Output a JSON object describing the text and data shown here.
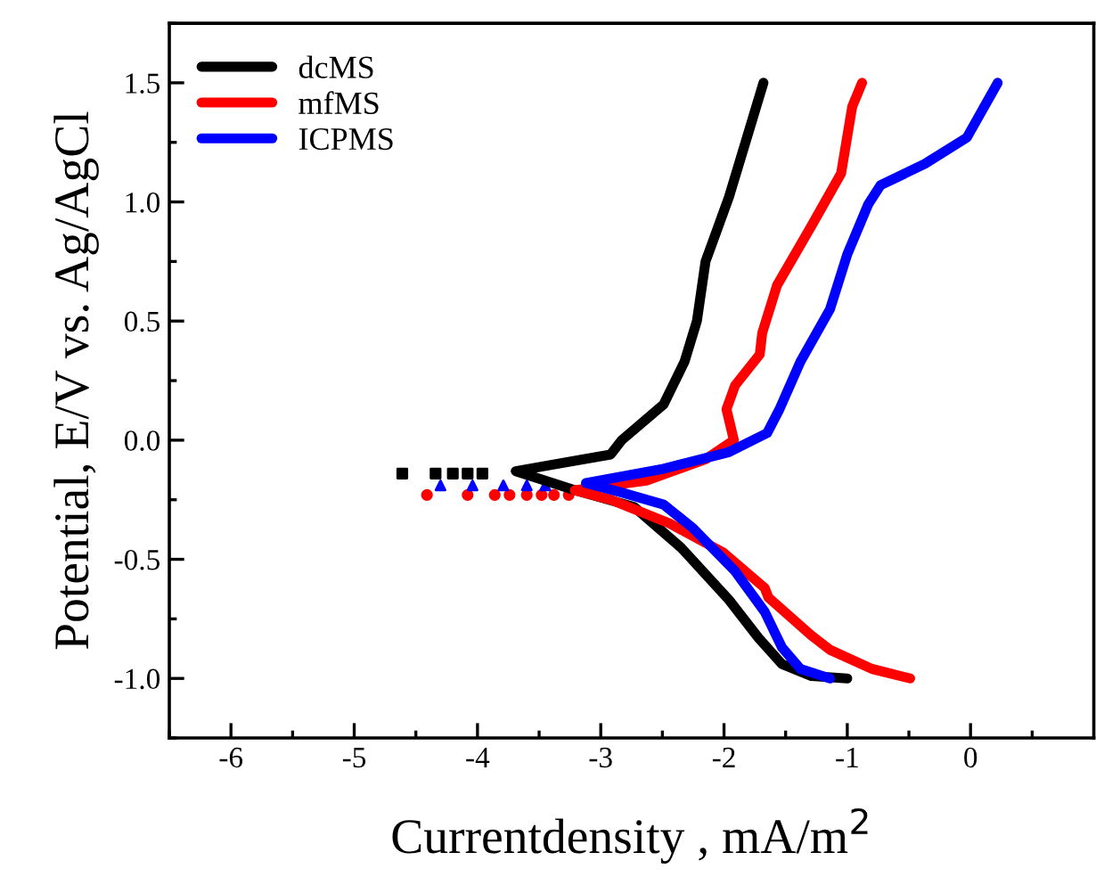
{
  "chart_data": {
    "type": "line",
    "xlabel": "Currentdensity , mA/m$^{2}$",
    "ylabel": "Potential, E/V vs. Ag/AgCl",
    "xlim": [
      -6.5,
      1.0
    ],
    "ylim": [
      -1.25,
      1.75
    ],
    "xticks": [
      -6,
      -5,
      -4,
      -3,
      -2,
      -1,
      0
    ],
    "yticks": [
      {
        "value": -1,
        "label": "-1.0"
      },
      {
        "value": -0.5,
        "label": "-0.5"
      },
      {
        "value": 0,
        "label": "0.0"
      },
      {
        "value": 0.5,
        "label": "0.5"
      },
      {
        "value": 1,
        "label": "1.0"
      },
      {
        "value": 1.5,
        "label": "1.5"
      }
    ],
    "legend": "top left",
    "grid": false,
    "series": [
      {
        "name": "dcMS",
        "color": "#000000",
        "x": [
          -1.68,
          -1.96,
          -2.15,
          -2.22,
          -2.32,
          -2.49,
          -2.83,
          -2.92,
          -3.69,
          -3.21,
          -2.73,
          -2.35,
          -1.96,
          -1.72,
          -1.53,
          -1.29,
          -1.0
        ],
        "values": [
          1.5,
          1.02,
          0.75,
          0.5,
          0.33,
          0.15,
          0.0,
          -0.06,
          -0.13,
          -0.21,
          -0.28,
          -0.45,
          -0.67,
          -0.83,
          -0.94,
          -0.99,
          -1.0
        ]
      },
      {
        "name": "mfMS",
        "color": "#ff0000",
        "x": [
          -0.88,
          -0.96,
          -1.05,
          -1.29,
          -1.57,
          -1.69,
          -1.71,
          -1.91,
          -1.98,
          -1.92,
          -2.15,
          -2.63,
          -3.21,
          -2.92,
          -2.44,
          -2.01,
          -1.67,
          -1.64,
          -1.29,
          -1.14,
          -0.8,
          -0.49
        ],
        "values": [
          1.5,
          1.4,
          1.12,
          0.9,
          0.65,
          0.45,
          0.36,
          0.23,
          0.13,
          0.0,
          -0.08,
          -0.17,
          -0.21,
          -0.25,
          -0.35,
          -0.47,
          -0.62,
          -0.66,
          -0.82,
          -0.88,
          -0.96,
          -1.0
        ]
      },
      {
        "name": "ICPMS",
        "color": "#0000ff",
        "x": [
          0.22,
          -0.03,
          -0.37,
          -0.73,
          -0.83,
          -1.0,
          -1.14,
          -1.38,
          -1.55,
          -1.65,
          -1.96,
          -2.49,
          -3.12,
          -2.83,
          -2.49,
          -2.25,
          -1.91,
          -1.67,
          -1.53,
          -1.38,
          -1.14
        ],
        "values": [
          1.5,
          1.27,
          1.16,
          1.07,
          0.99,
          0.78,
          0.55,
          0.33,
          0.13,
          0.03,
          -0.05,
          -0.12,
          -0.18,
          -0.22,
          -0.27,
          -0.37,
          -0.55,
          -0.72,
          -0.87,
          -0.96,
          -1.0
        ]
      },
      {
        "type": "scatter",
        "marker": "square",
        "color": "#000000",
        "x": [
          -3.96,
          -4.08,
          -4.2,
          -4.34,
          -4.61
        ],
        "values": [
          -0.14,
          -0.14,
          -0.14,
          -0.14,
          -0.14
        ]
      },
      {
        "type": "scatter",
        "marker": "circle",
        "color": "#ff0000",
        "x": [
          -3.26,
          -3.38,
          -3.48,
          -3.6,
          -3.74,
          -3.86,
          -4.08,
          -4.41
        ],
        "values": [
          -0.23,
          -0.23,
          -0.23,
          -0.23,
          -0.23,
          -0.23,
          -0.23,
          -0.23
        ]
      },
      {
        "type": "scatter",
        "marker": "triangle",
        "color": "#0000ff",
        "x": [
          -3.45,
          -3.6,
          -3.79,
          -4.04,
          -4.3
        ],
        "values": [
          -0.19,
          -0.19,
          -0.19,
          -0.19,
          -0.19
        ]
      }
    ]
  }
}
